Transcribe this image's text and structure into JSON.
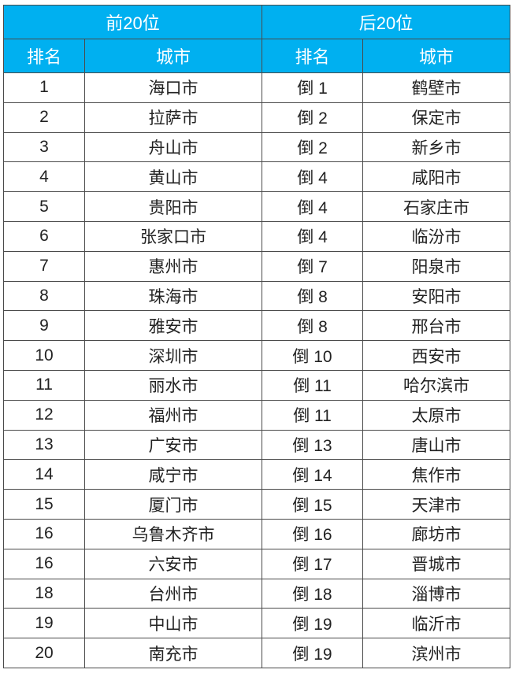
{
  "header": {
    "top_group": "前20位",
    "bottom_group": "后20位",
    "rank": "排名",
    "city": "城市"
  },
  "colors": {
    "header_bg": "#00b0f0",
    "header_text": "#ffffff"
  },
  "rows": [
    {
      "top_rank": "1",
      "top_city": "海口市",
      "bottom_rank": "倒 1",
      "bottom_city": "鹤壁市"
    },
    {
      "top_rank": "2",
      "top_city": "拉萨市",
      "bottom_rank": "倒 2",
      "bottom_city": "保定市"
    },
    {
      "top_rank": "3",
      "top_city": "舟山市",
      "bottom_rank": "倒 2",
      "bottom_city": "新乡市"
    },
    {
      "top_rank": "4",
      "top_city": "黄山市",
      "bottom_rank": "倒 4",
      "bottom_city": "咸阳市"
    },
    {
      "top_rank": "5",
      "top_city": "贵阳市",
      "bottom_rank": "倒 4",
      "bottom_city": "石家庄市"
    },
    {
      "top_rank": "6",
      "top_city": "张家口市",
      "bottom_rank": "倒 4",
      "bottom_city": "临汾市"
    },
    {
      "top_rank": "7",
      "top_city": "惠州市",
      "bottom_rank": "倒 7",
      "bottom_city": "阳泉市"
    },
    {
      "top_rank": "8",
      "top_city": "珠海市",
      "bottom_rank": "倒 8",
      "bottom_city": "安阳市"
    },
    {
      "top_rank": "9",
      "top_city": "雅安市",
      "bottom_rank": "倒 8",
      "bottom_city": "邢台市"
    },
    {
      "top_rank": "10",
      "top_city": "深圳市",
      "bottom_rank": "倒 10",
      "bottom_city": "西安市"
    },
    {
      "top_rank": "11",
      "top_city": "丽水市",
      "bottom_rank": "倒 11",
      "bottom_city": "哈尔滨市"
    },
    {
      "top_rank": "12",
      "top_city": "福州市",
      "bottom_rank": "倒 11",
      "bottom_city": "太原市"
    },
    {
      "top_rank": "13",
      "top_city": "广安市",
      "bottom_rank": "倒 13",
      "bottom_city": "唐山市"
    },
    {
      "top_rank": "14",
      "top_city": "咸宁市",
      "bottom_rank": "倒 14",
      "bottom_city": "焦作市"
    },
    {
      "top_rank": "15",
      "top_city": "厦门市",
      "bottom_rank": "倒 15",
      "bottom_city": "天津市"
    },
    {
      "top_rank": "16",
      "top_city": "乌鲁木齐市",
      "bottom_rank": "倒 16",
      "bottom_city": "廊坊市"
    },
    {
      "top_rank": "16",
      "top_city": "六安市",
      "bottom_rank": "倒 17",
      "bottom_city": "晋城市"
    },
    {
      "top_rank": "18",
      "top_city": "台州市",
      "bottom_rank": "倒 18",
      "bottom_city": "淄博市"
    },
    {
      "top_rank": "19",
      "top_city": "中山市",
      "bottom_rank": "倒 19",
      "bottom_city": "临沂市"
    },
    {
      "top_rank": "20",
      "top_city": "南充市",
      "bottom_rank": "倒 19",
      "bottom_city": "滨州市"
    }
  ]
}
